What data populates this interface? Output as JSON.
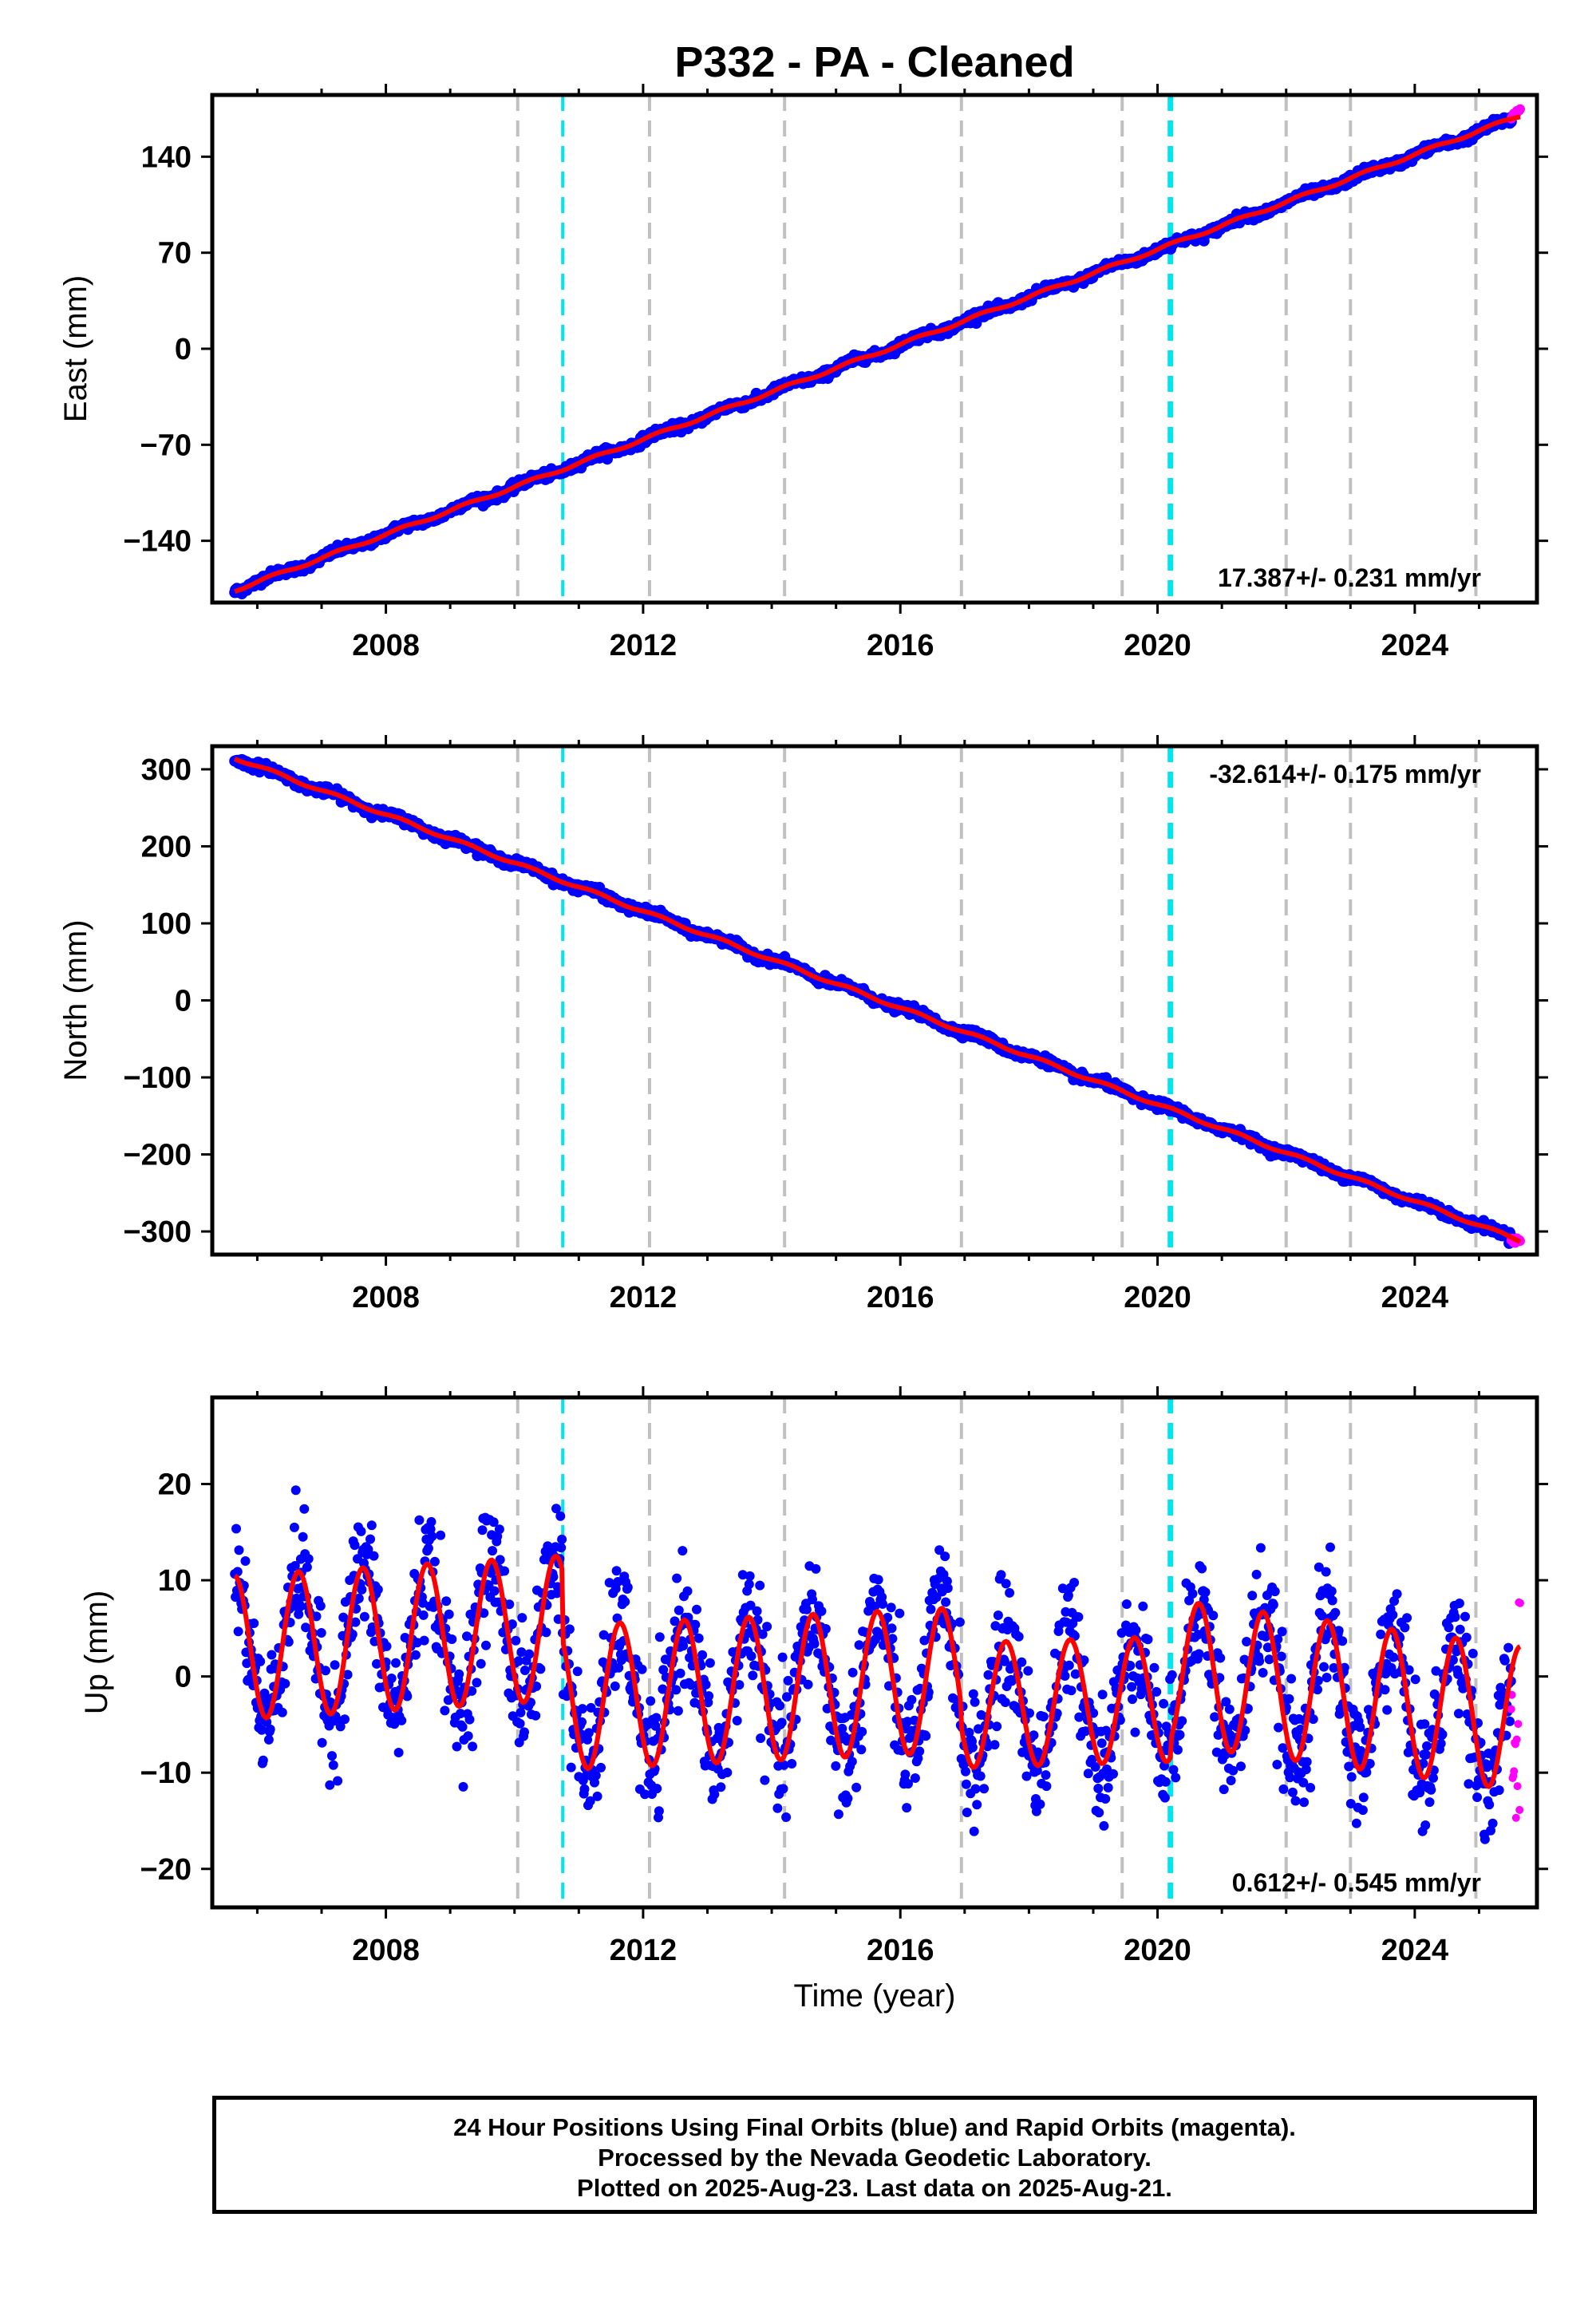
{
  "title": "P332  - PA - Cleaned",
  "xlabel": "Time (year)",
  "footer": {
    "line1": "24 Hour Positions Using Final Orbits (blue) and Rapid Orbits (magenta).",
    "line2": "Processed by the Nevada Geodetic Laboratory.",
    "line3": "Plotted on 2025-Aug-23. Last data on 2025-Aug-21."
  },
  "colors": {
    "final": "#0000ff",
    "rapid": "#ff00ff",
    "model": "#ff0000",
    "event_gray": "#c0c0c0",
    "event_cyan": "#00e5ee"
  },
  "chart_data": [
    {
      "type": "scatter",
      "component": "east",
      "ylabel": "East (mm)",
      "xlim": [
        2005.3,
        2025.9
      ],
      "ylim": [
        -185,
        185
      ],
      "yticks": [
        -140,
        -70,
        0,
        70,
        140
      ],
      "xticks": [
        2008,
        2012,
        2016,
        2020,
        2024
      ],
      "rate_label": "17.387+/- 0.231 mm/yr",
      "rate_position": "bottom-right",
      "series": [
        {
          "role": "final",
          "x_range": [
            2005.65,
            2025.5
          ],
          "trend": {
            "start": -176,
            "end": 167,
            "rate": 17.387
          }
        },
        {
          "role": "rapid",
          "x_range": [
            2025.5,
            2025.64
          ],
          "trend": {
            "start": 168,
            "end": 175
          }
        },
        {
          "role": "model",
          "x_range": [
            2005.65,
            2025.64
          ],
          "trend": {
            "start": -176,
            "end": 170
          }
        }
      ]
    },
    {
      "type": "scatter",
      "component": "north",
      "ylabel": "North (mm)",
      "xlim": [
        2005.3,
        2025.9
      ],
      "ylim": [
        -330,
        330
      ],
      "yticks": [
        -300,
        -200,
        -100,
        0,
        100,
        200,
        300
      ],
      "xticks": [
        2008,
        2012,
        2016,
        2020,
        2024
      ],
      "rate_label": "-32.614+/- 0.175 mm/yr",
      "rate_position": "top-right",
      "series": [
        {
          "role": "final",
          "x_range": [
            2005.65,
            2025.5
          ],
          "trend": {
            "start": 315,
            "end": -308,
            "rate": -32.614
          }
        },
        {
          "role": "rapid",
          "x_range": [
            2025.5,
            2025.64
          ],
          "trend": {
            "start": -309,
            "end": -313
          }
        },
        {
          "role": "model",
          "x_range": [
            2005.65,
            2025.64
          ],
          "trend": {
            "start": 315,
            "end": -312
          }
        }
      ]
    },
    {
      "type": "scatter",
      "component": "up",
      "ylabel": "Up (mm)",
      "xlim": [
        2005.3,
        2025.9
      ],
      "ylim": [
        -24,
        29
      ],
      "yticks": [
        -20,
        -10,
        0,
        10,
        20
      ],
      "xticks": [
        2008,
        2012,
        2016,
        2020,
        2024
      ],
      "rate_label": "0.612+/- 0.545 mm/yr",
      "rate_position": "bottom-right",
      "series": [
        {
          "role": "final",
          "x_range": [
            2005.65,
            2025.5
          ],
          "scatter_sd": 3.2
        },
        {
          "role": "rapid",
          "x_range": [
            2025.5,
            2025.64
          ],
          "y_range": [
            -15,
            9
          ]
        },
        {
          "role": "model",
          "x_range": [
            2005.65,
            2025.64
          ],
          "segments": [
            {
              "x0": 2005.65,
              "x1": 2010.75,
              "offset": 3.0,
              "amp": 7.5,
              "trend": 0.4
            },
            {
              "x0": 2010.75,
              "x1": 2016.95,
              "offset": -2.2,
              "amp": 7.5,
              "trend": 0.3
            },
            {
              "x0": 2016.95,
              "x1": 2020.2,
              "offset": -3.0,
              "amp": 6.5,
              "trend": 0.2
            },
            {
              "x0": 2020.2,
              "x1": 2025.64,
              "offset": 0.5,
              "amp": 7.5,
              "trend": -0.9
            }
          ]
        }
      ]
    }
  ],
  "events": {
    "gray": [
      2010.05,
      2012.1,
      2014.2,
      2016.95,
      2019.45,
      2022.0,
      2023.0,
      2024.95
    ],
    "cyan": [
      2010.75,
      2020.2
    ]
  }
}
